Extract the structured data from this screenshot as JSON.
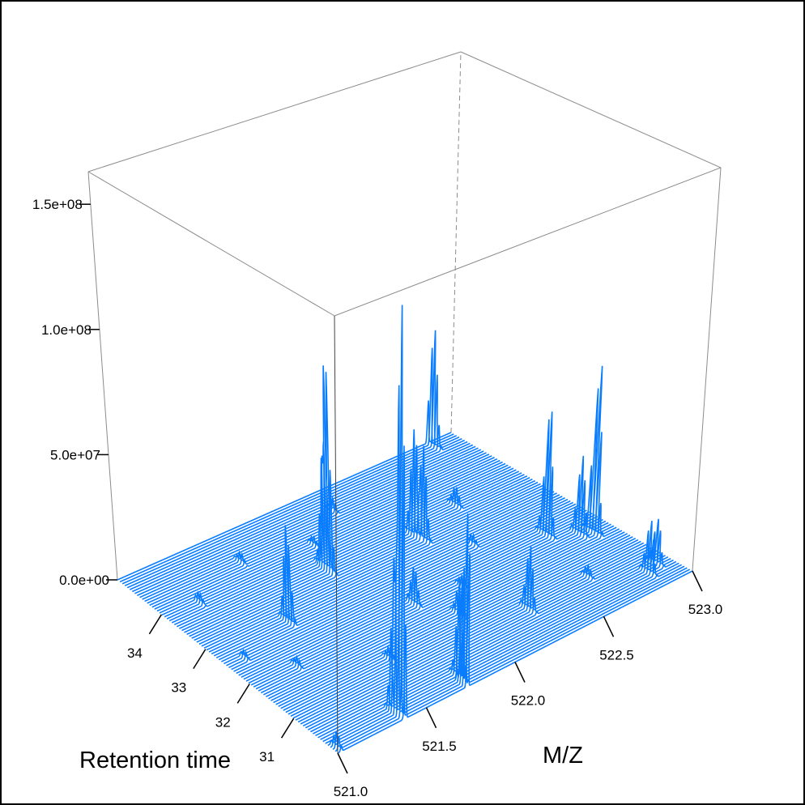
{
  "chart_data": {
    "type": "3d-line",
    "title": "",
    "xlabel": "M/Z",
    "ylabel": "Retention time",
    "zlabel": "",
    "xlim": [
      521.0,
      523.0
    ],
    "ylim": [
      30.0,
      35.0
    ],
    "zlim": [
      0,
      163000000
    ],
    "xticks": [
      {
        "value": 521.0,
        "label": "521.0"
      },
      {
        "value": 521.5,
        "label": "521.5"
      },
      {
        "value": 522.0,
        "label": "522.0"
      },
      {
        "value": 522.5,
        "label": "522.5"
      },
      {
        "value": 523.0,
        "label": "523.0"
      }
    ],
    "yticks": [
      {
        "value": 31,
        "label": "31"
      },
      {
        "value": 32,
        "label": "32"
      },
      {
        "value": 33,
        "label": "33"
      },
      {
        "value": 34,
        "label": "34"
      }
    ],
    "zticks": [
      {
        "value": 0,
        "label": "0.0e+00"
      },
      {
        "value": 50000000,
        "label": "5.0e+07"
      },
      {
        "value": 100000000,
        "label": "1.0e+08"
      },
      {
        "value": 150000000,
        "label": "1.5e+08"
      }
    ],
    "n_scans": 90,
    "line_color": "#0a7dff",
    "box_color": "#8c8c8c",
    "peaks": [
      {
        "mz": 521.38,
        "rt": 30.12,
        "intensity": 155000000
      },
      {
        "mz": 521.37,
        "rt": 30.2,
        "intensity": 60000000
      },
      {
        "mz": 521.82,
        "rt": 33.4,
        "intensity": 87000000
      },
      {
        "mz": 521.83,
        "rt": 33.5,
        "intensity": 50000000
      },
      {
        "mz": 522.3,
        "rt": 33.3,
        "intensity": 44000000
      },
      {
        "mz": 522.31,
        "rt": 33.15,
        "intensity": 38000000
      },
      {
        "mz": 522.86,
        "rt": 34.9,
        "intensity": 50000000
      },
      {
        "mz": 521.43,
        "rt": 32.8,
        "intensity": 38000000
      },
      {
        "mz": 521.73,
        "rt": 30.05,
        "intensity": 66000000
      },
      {
        "mz": 521.75,
        "rt": 30.25,
        "intensity": 40000000
      },
      {
        "mz": 522.74,
        "rt": 32.1,
        "intensity": 53000000
      },
      {
        "mz": 522.9,
        "rt": 31.7,
        "intensity": 70000000
      },
      {
        "mz": 522.85,
        "rt": 31.8,
        "intensity": 32000000
      },
      {
        "mz": 522.3,
        "rt": 30.85,
        "intensity": 25000000
      },
      {
        "mz": 522.86,
        "rt": 30.4,
        "intensity": 21000000
      },
      {
        "mz": 522.93,
        "rt": 30.5,
        "intensity": 18000000
      },
      {
        "mz": 522.6,
        "rt": 33.5,
        "intensity": 8000000
      },
      {
        "mz": 521.02,
        "rt": 30.1,
        "intensity": 6000000
      },
      {
        "mz": 521.95,
        "rt": 32.0,
        "intensity": 15000000
      },
      {
        "mz": 522.05,
        "rt": 31.4,
        "intensity": 12000000
      },
      {
        "mz": 521.6,
        "rt": 31.2,
        "intensity": 5000000
      },
      {
        "mz": 521.2,
        "rt": 33.9,
        "intensity": 4000000
      },
      {
        "mz": 521.55,
        "rt": 34.3,
        "intensity": 4000000
      },
      {
        "mz": 522.15,
        "rt": 34.5,
        "intensity": 5000000
      },
      {
        "mz": 522.45,
        "rt": 32.6,
        "intensity": 4000000
      },
      {
        "mz": 521.25,
        "rt": 31.9,
        "intensity": 3500000
      },
      {
        "mz": 522.65,
        "rt": 30.9,
        "intensity": 4500000
      },
      {
        "mz": 521.9,
        "rt": 34.0,
        "intensity": 3500000
      },
      {
        "mz": 522.2,
        "rt": 31.9,
        "intensity": 4000000
      },
      {
        "mz": 521.1,
        "rt": 32.5,
        "intensity": 3000000
      }
    ]
  }
}
